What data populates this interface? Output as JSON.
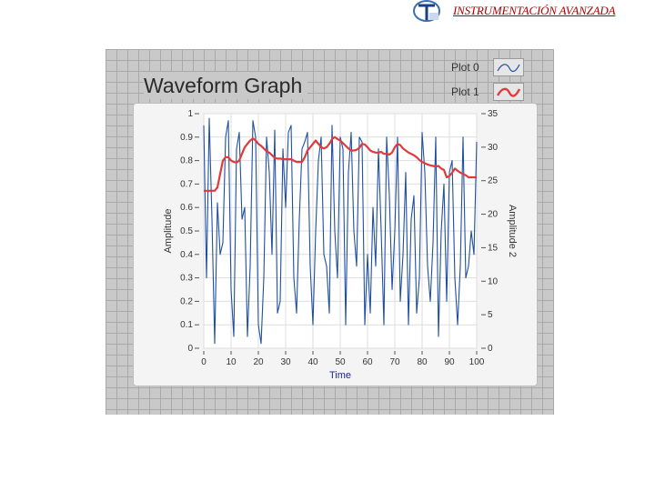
{
  "header": {
    "title": "INSTRUMENTACIÓN AVANZADA"
  },
  "graph": {
    "title": "Waveform Graph",
    "legend": [
      {
        "label": "Plot 0",
        "color": "#1f4fa3"
      },
      {
        "label": "Plot 1",
        "color": "#e03a3a"
      }
    ]
  },
  "chart_data": {
    "type": "line",
    "xlabel": "Time",
    "ylabel": "Amplitude",
    "y2label": "Amplitude 2",
    "xlim": [
      0,
      100
    ],
    "ylim": [
      0,
      1
    ],
    "y2lim": [
      0,
      35
    ],
    "x_ticks": [
      "0",
      "10",
      "20",
      "30",
      "40",
      "50",
      "60",
      "70",
      "80",
      "90",
      "100"
    ],
    "y_ticks": [
      "0",
      "0.1",
      "0.2",
      "0.3",
      "0.4",
      "0.5",
      "0.6",
      "0.7",
      "0.8",
      "0.9",
      "1"
    ],
    "y2_ticks": [
      "0",
      "5",
      "10",
      "15",
      "20",
      "25",
      "30",
      "35"
    ],
    "grid": true,
    "legend_position": "top-right",
    "series": [
      {
        "name": "Plot 0",
        "axis": "left",
        "color": "#1f4fa3",
        "values": [
          0.95,
          0.3,
          0.98,
          0.55,
          0.02,
          0.62,
          0.4,
          0.45,
          0.9,
          0.97,
          0.25,
          0.05,
          0.85,
          0.92,
          0.55,
          0.6,
          0.05,
          0.35,
          0.97,
          0.9,
          0.1,
          0.02,
          0.3,
          0.9,
          0.75,
          0.4,
          0.93,
          0.15,
          0.2,
          0.85,
          0.6,
          0.92,
          0.95,
          0.3,
          0.15,
          0.55,
          0.85,
          0.88,
          0.92,
          0.35,
          0.1,
          0.5,
          0.8,
          0.9,
          0.4,
          0.35,
          0.15,
          0.95,
          0.5,
          0.3,
          0.9,
          0.85,
          0.1,
          0.75,
          0.92,
          0.5,
          0.35,
          0.9,
          0.88,
          0.1,
          0.4,
          0.15,
          0.6,
          0.35,
          0.85,
          0.5,
          0.1,
          0.9,
          0.65,
          0.25,
          0.5,
          0.9,
          0.2,
          0.4,
          0.75,
          0.1,
          0.55,
          0.65,
          0.15,
          0.3,
          0.92,
          0.75,
          0.35,
          0.2,
          0.45,
          0.9,
          0.05,
          0.5,
          0.7,
          0.2,
          0.75,
          0.8,
          0.3,
          0.1,
          0.35,
          0.9,
          0.3,
          0.35,
          0.5,
          0.4,
          0.88
        ]
      },
      {
        "name": "Plot 1",
        "axis": "right",
        "color": "#e03a3a",
        "values": [
          23.5,
          23.5,
          23.5,
          23.5,
          23.5,
          24,
          26,
          28,
          28.5,
          28.5,
          28,
          27.8,
          27.7,
          28,
          29,
          30,
          30.5,
          31,
          31.3,
          31,
          30.5,
          30.2,
          29.8,
          29.4,
          29.2,
          28.8,
          28.4,
          28.3,
          28.3,
          28.2,
          28.2,
          28.2,
          28.2,
          28,
          27.8,
          27.8,
          27.8,
          28.5,
          29.5,
          30,
          30.5,
          31,
          30.5,
          30,
          29.8,
          30,
          30.5,
          31.2,
          31.5,
          31.2,
          31,
          30.6,
          30.2,
          29.8,
          29.5,
          29.5,
          29.6,
          29.9,
          30.5,
          30.4,
          30,
          29.5,
          29.3,
          29.2,
          29.2,
          29.3,
          29,
          29,
          28.9,
          29.2,
          30,
          30.5,
          30.3,
          29.8,
          29.5,
          29.2,
          29,
          28.8,
          28.5,
          28.1,
          27.8,
          27.6,
          27.4,
          27.3,
          27.2,
          27.1,
          27.2,
          26.8,
          26.6,
          25.5,
          25.7,
          26.2,
          26.8,
          26.5,
          26.2,
          26,
          25.8,
          25.5,
          25.5,
          25.5,
          25.5
        ]
      }
    ]
  }
}
